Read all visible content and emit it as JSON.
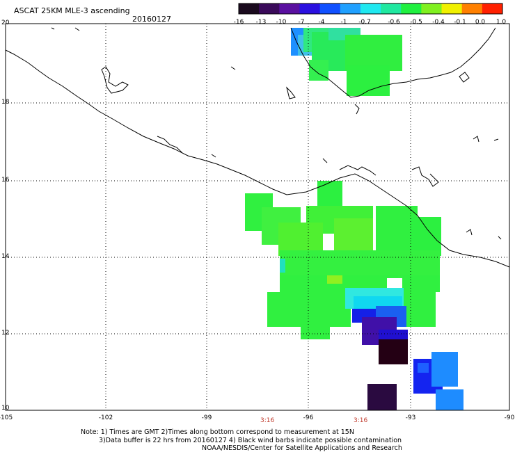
{
  "title": "ASCAT 25KM MLE-3 ascending",
  "date": "20160127",
  "colorbar": {
    "labels": [
      "-16",
      "-13",
      "-10",
      "-7",
      "-4",
      "-1",
      "-0.7",
      "-0.6",
      "-0.5",
      "-0.4",
      "-0.1",
      "0.0",
      "1.0"
    ],
    "colors": [
      "#1a0a1e",
      "#3a0a5a",
      "#5a10a0",
      "#2a10e0",
      "#1050ff",
      "#20a0ff",
      "#20e8f0",
      "#20e8a0",
      "#20f040",
      "#80f020",
      "#f0f000",
      "#ff8000",
      "#ff2000"
    ]
  },
  "axes": {
    "lon_labels": [
      "-105",
      "-102",
      "-99",
      "-96",
      "-93",
      "-90"
    ],
    "lat_labels": [
      "20",
      "18",
      "16",
      "14",
      "12",
      "10"
    ]
  },
  "pass_times": [
    "3:16",
    "3:16"
  ],
  "notes": [
    "Note: 1) Times are GMT 2)Times along bottom correspond to measurement at 15N",
    "3)Data buffer is 22 hrs from 20160127 4) Black wind barbs indicate possible contamination",
    "NOAA/NESDIS/Center for Satellite Applications and Research"
  ]
}
